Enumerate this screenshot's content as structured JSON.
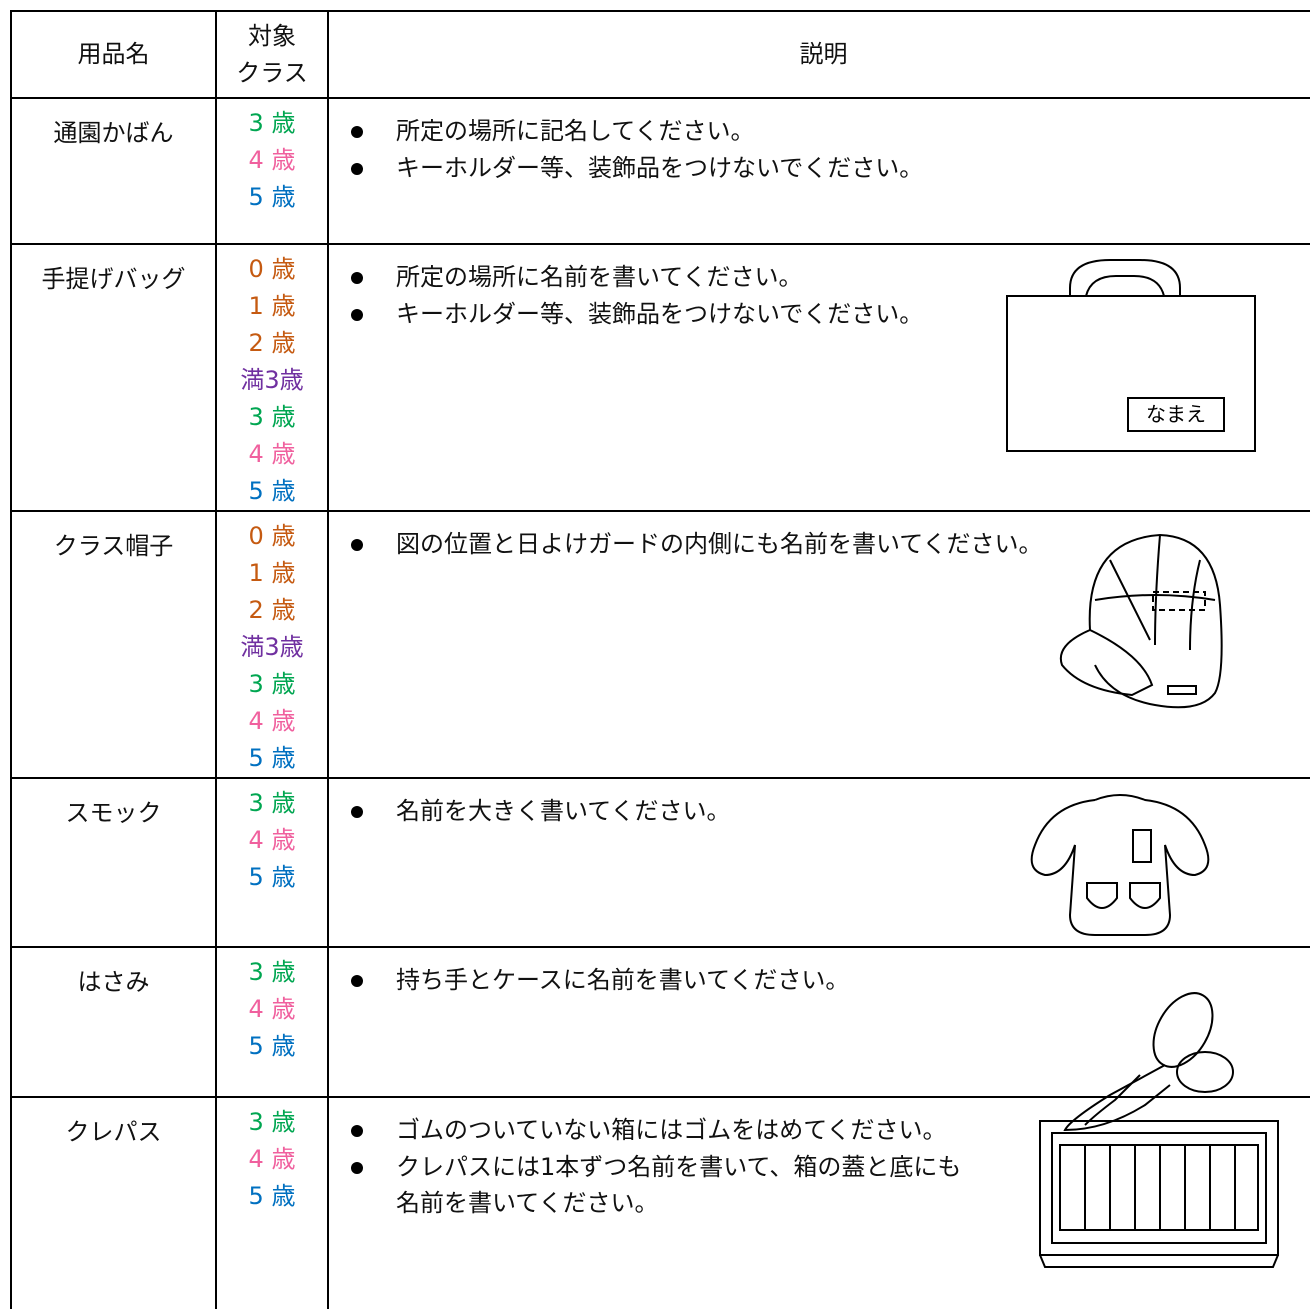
{
  "table": {
    "header": [
      "用品名",
      "対象\nクラス",
      "説明"
    ],
    "rows": [
      {
        "item": "通園かばん",
        "classes": [
          {
            "label": "3 歳",
            "color": "#00a651"
          },
          {
            "label": "4 歳",
            "color": "#f0609e"
          },
          {
            "label": "5 歳",
            "color": "#0070c0"
          }
        ],
        "notes": [
          "所定の場所に記名してください。",
          "キーホルダー等、装飾品をつけないでください。"
        ]
      },
      {
        "item": "手提げバッグ",
        "classes": [
          {
            "label": "0 歳",
            "color": "#c55a11"
          },
          {
            "label": "1 歳",
            "color": "#c55a11"
          },
          {
            "label": "2 歳",
            "color": "#c55a11"
          },
          {
            "label": "満3歳",
            "color": "#7030a0"
          },
          {
            "label": "3 歳",
            "color": "#00a651"
          },
          {
            "label": "4 歳",
            "color": "#f0609e"
          },
          {
            "label": "5 歳",
            "color": "#0070c0"
          }
        ],
        "notes": [
          "所定の場所に名前を書いてください。",
          "キーホルダー等、装飾品をつけないでください。"
        ],
        "illustration_label": "なまえ"
      },
      {
        "item": "クラス帽子",
        "classes": [
          {
            "label": "0 歳",
            "color": "#c55a11"
          },
          {
            "label": "1 歳",
            "color": "#c55a11"
          },
          {
            "label": "2 歳",
            "color": "#c55a11"
          },
          {
            "label": "満3歳",
            "color": "#7030a0"
          },
          {
            "label": "3 歳",
            "color": "#00a651"
          },
          {
            "label": "4 歳",
            "color": "#f0609e"
          },
          {
            "label": "5 歳",
            "color": "#0070c0"
          }
        ],
        "notes": [
          "図の位置と日よけガードの内側にも名前を書いてください。"
        ]
      },
      {
        "item": "スモック",
        "classes": [
          {
            "label": "3 歳",
            "color": "#00a651"
          },
          {
            "label": "4 歳",
            "color": "#f0609e"
          },
          {
            "label": "5 歳",
            "color": "#0070c0"
          }
        ],
        "notes": [
          "名前を大きく書いてください。"
        ]
      },
      {
        "item": "はさみ",
        "classes": [
          {
            "label": "3 歳",
            "color": "#00a651"
          },
          {
            "label": "4 歳",
            "color": "#f0609e"
          },
          {
            "label": "5 歳",
            "color": "#0070c0"
          }
        ],
        "notes": [
          "持ち手とケースに名前を書いてください。"
        ]
      },
      {
        "item": "クレパス",
        "classes": [
          {
            "label": "3 歳",
            "color": "#00a651"
          },
          {
            "label": "4 歳",
            "color": "#f0609e"
          },
          {
            "label": "5 歳",
            "color": "#0070c0"
          }
        ],
        "notes": [
          "ゴムのついていない箱にはゴムをはめてください。",
          "クレパスには1本ずつ名前を書いて、箱の蓋と底にも\n名前を書いてください。"
        ]
      }
    ]
  }
}
